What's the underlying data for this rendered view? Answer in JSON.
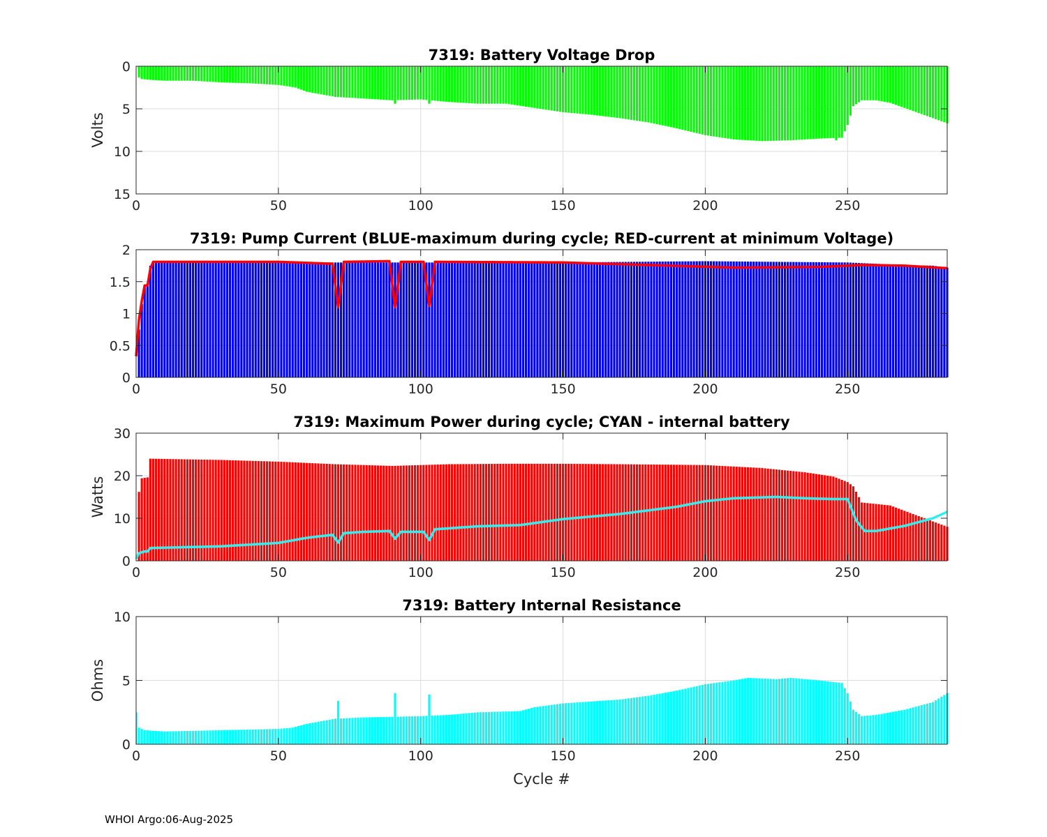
{
  "chart_data": [
    {
      "type": "bar",
      "title": "7319: Battery Voltage Drop",
      "xlabel": "",
      "ylabel": "Volts",
      "xlim": [
        0,
        285
      ],
      "ylim": [
        0,
        15
      ],
      "y_reversed": true,
      "xticks": [
        0,
        50,
        100,
        150,
        200,
        250
      ],
      "yticks": [
        0,
        5,
        10,
        15
      ],
      "grid": true,
      "colors": {
        "bars": "#00ff00"
      },
      "spikes": [
        {
          "x": 91,
          "y": 4.4
        },
        {
          "x": 103,
          "y": 4.4
        },
        {
          "x": 246,
          "y": 8.7
        }
      ],
      "series": [
        {
          "name": "Voltage drop",
          "values_at": [
            [
              1,
              1.3
            ],
            [
              2,
              1.5
            ],
            [
              5,
              1.6
            ],
            [
              10,
              1.7
            ],
            [
              20,
              1.7
            ],
            [
              30,
              1.9
            ],
            [
              40,
              2.0
            ],
            [
              50,
              2.2
            ],
            [
              56,
              2.5
            ],
            [
              60,
              3.0
            ],
            [
              70,
              3.6
            ],
            [
              80,
              3.8
            ],
            [
              90,
              4.0
            ],
            [
              100,
              3.9
            ],
            [
              110,
              4.2
            ],
            [
              120,
              4.4
            ],
            [
              130,
              4.4
            ],
            [
              140,
              4.9
            ],
            [
              150,
              5.4
            ],
            [
              160,
              5.7
            ],
            [
              170,
              6.1
            ],
            [
              180,
              6.6
            ],
            [
              190,
              7.3
            ],
            [
              200,
              8.1
            ],
            [
              210,
              8.6
            ],
            [
              220,
              8.8
            ],
            [
              230,
              8.7
            ],
            [
              240,
              8.5
            ],
            [
              248,
              8.4
            ],
            [
              250,
              6.9
            ],
            [
              252,
              4.7
            ],
            [
              255,
              4.0
            ],
            [
              260,
              4.0
            ],
            [
              265,
              4.3
            ],
            [
              270,
              4.9
            ],
            [
              275,
              5.5
            ],
            [
              280,
              6.1
            ],
            [
              285,
              6.7
            ]
          ]
        }
      ]
    },
    {
      "type": "bar",
      "title": "7319: Pump Current (BLUE-maximum during cycle; RED-current at minimum Voltage)",
      "xlabel": "",
      "ylabel": "",
      "xlim": [
        0,
        285
      ],
      "ylim": [
        0,
        2
      ],
      "xticks": [
        0,
        50,
        100,
        150,
        200,
        250
      ],
      "yticks": [
        0,
        0.5,
        1,
        1.5,
        2
      ],
      "grid": true,
      "colors": {
        "bars": "#0000ff",
        "line": "#ff0000"
      },
      "series": [
        {
          "name": "BLUE-maximum during cycle",
          "values_at": [
            [
              0,
              0.35
            ],
            [
              1,
              0.75
            ],
            [
              2,
              1.15
            ],
            [
              3,
              1.42
            ],
            [
              4,
              1.45
            ],
            [
              5,
              1.75
            ],
            [
              6,
              1.8
            ],
            [
              50,
              1.8
            ],
            [
              150,
              1.8
            ],
            [
              200,
              1.82
            ],
            [
              250,
              1.8
            ],
            [
              270,
              1.76
            ],
            [
              280,
              1.75
            ],
            [
              285,
              1.72
            ]
          ]
        },
        {
          "name": "RED-current at minimum Voltage",
          "values_at": [
            [
              0,
              0.33
            ],
            [
              1,
              0.9
            ],
            [
              2,
              1.2
            ],
            [
              3,
              1.44
            ],
            [
              4,
              1.44
            ],
            [
              5,
              1.7
            ],
            [
              6,
              1.81
            ],
            [
              50,
              1.81
            ],
            [
              69,
              1.78
            ],
            [
              71,
              1.1
            ],
            [
              73,
              1.81
            ],
            [
              89,
              1.82
            ],
            [
              91,
              1.1
            ],
            [
              93,
              1.81
            ],
            [
              101,
              1.81
            ],
            [
              103,
              1.12
            ],
            [
              105,
              1.81
            ],
            [
              150,
              1.8
            ],
            [
              180,
              1.76
            ],
            [
              210,
              1.72
            ],
            [
              240,
              1.73
            ],
            [
              255,
              1.76
            ],
            [
              270,
              1.75
            ],
            [
              285,
              1.71
            ]
          ]
        }
      ]
    },
    {
      "type": "bar",
      "title": "7319: Maximum Power during cycle; CYAN - internal battery",
      "xlabel": "",
      "ylabel": "Watts",
      "xlim": [
        0,
        285
      ],
      "ylim": [
        0,
        30
      ],
      "xticks": [
        0,
        50,
        100,
        150,
        200,
        250
      ],
      "yticks": [
        0,
        10,
        20,
        30
      ],
      "grid": true,
      "colors": {
        "bars": "#ff0000",
        "line": "#33eeee"
      },
      "series": [
        {
          "name": "Maximum Power",
          "values_at": [
            [
              1,
              16.2
            ],
            [
              2,
              19.4
            ],
            [
              4,
              19.6
            ],
            [
              5,
              24.0
            ],
            [
              30,
              23.7
            ],
            [
              50,
              23.3
            ],
            [
              70,
              22.7
            ],
            [
              90,
              22.3
            ],
            [
              110,
              22.7
            ],
            [
              130,
              22.8
            ],
            [
              150,
              22.8
            ],
            [
              170,
              22.7
            ],
            [
              200,
              22.5
            ],
            [
              220,
              21.8
            ],
            [
              235,
              20.8
            ],
            [
              245,
              19.8
            ],
            [
              250,
              18.5
            ],
            [
              252,
              17.5
            ],
            [
              255,
              13.7
            ],
            [
              265,
              13.0
            ],
            [
              275,
              10.5
            ],
            [
              285,
              8.0
            ]
          ]
        },
        {
          "name": "CYAN - internal battery",
          "values_at": [
            [
              0,
              0.5
            ],
            [
              1,
              1.8
            ],
            [
              3,
              2.2
            ],
            [
              4,
              2.2
            ],
            [
              5,
              3.0
            ],
            [
              30,
              3.4
            ],
            [
              40,
              3.8
            ],
            [
              50,
              4.2
            ],
            [
              60,
              5.4
            ],
            [
              69,
              6.1
            ],
            [
              71,
              4.3
            ],
            [
              73,
              6.5
            ],
            [
              80,
              6.8
            ],
            [
              89,
              7.0
            ],
            [
              91,
              5.2
            ],
            [
              93,
              6.8
            ],
            [
              101,
              6.8
            ],
            [
              103,
              4.9
            ],
            [
              105,
              7.4
            ],
            [
              120,
              8.1
            ],
            [
              135,
              8.4
            ],
            [
              150,
              9.8
            ],
            [
              170,
              11.0
            ],
            [
              190,
              12.7
            ],
            [
              200,
              14.0
            ],
            [
              210,
              14.7
            ],
            [
              225,
              15.0
            ],
            [
              235,
              14.7
            ],
            [
              245,
              14.5
            ],
            [
              250,
              14.5
            ],
            [
              253,
              9.5
            ],
            [
              256,
              7.0
            ],
            [
              260,
              7.0
            ],
            [
              270,
              8.2
            ],
            [
              280,
              10.0
            ],
            [
              285,
              11.5
            ]
          ]
        }
      ]
    },
    {
      "type": "bar",
      "title": "7319: Battery Internal Resistance",
      "xlabel": "Cycle #",
      "ylabel": "Ohms",
      "xlim": [
        0,
        285
      ],
      "ylim": [
        0,
        10
      ],
      "xticks": [
        0,
        50,
        100,
        150,
        200,
        250
      ],
      "yticks": [
        0,
        5,
        10
      ],
      "grid": true,
      "colors": {
        "bars": "#00ffff"
      },
      "spikes": [
        {
          "x": 71,
          "y": 3.4
        },
        {
          "x": 91,
          "y": 4.0
        },
        {
          "x": 103,
          "y": 3.9
        }
      ],
      "series": [
        {
          "name": "Internal resistance",
          "values_at": [
            [
              0,
              2.5
            ],
            [
              1,
              1.3
            ],
            [
              3,
              1.1
            ],
            [
              10,
              1.0
            ],
            [
              30,
              1.1
            ],
            [
              50,
              1.2
            ],
            [
              55,
              1.3
            ],
            [
              60,
              1.6
            ],
            [
              70,
              2.0
            ],
            [
              80,
              2.1
            ],
            [
              100,
              2.2
            ],
            [
              110,
              2.3
            ],
            [
              120,
              2.5
            ],
            [
              135,
              2.6
            ],
            [
              140,
              2.9
            ],
            [
              150,
              3.2
            ],
            [
              170,
              3.5
            ],
            [
              180,
              3.8
            ],
            [
              190,
              4.2
            ],
            [
              200,
              4.7
            ],
            [
              210,
              5.0
            ],
            [
              215,
              5.2
            ],
            [
              225,
              5.1
            ],
            [
              230,
              5.2
            ],
            [
              240,
              5.0
            ],
            [
              248,
              4.8
            ],
            [
              250,
              4.0
            ],
            [
              252,
              2.7
            ],
            [
              255,
              2.2
            ],
            [
              260,
              2.3
            ],
            [
              270,
              2.7
            ],
            [
              280,
              3.3
            ],
            [
              285,
              4.0
            ]
          ]
        }
      ]
    }
  ],
  "footer": {
    "text": "WHOI Argo:06-Aug-2025"
  }
}
